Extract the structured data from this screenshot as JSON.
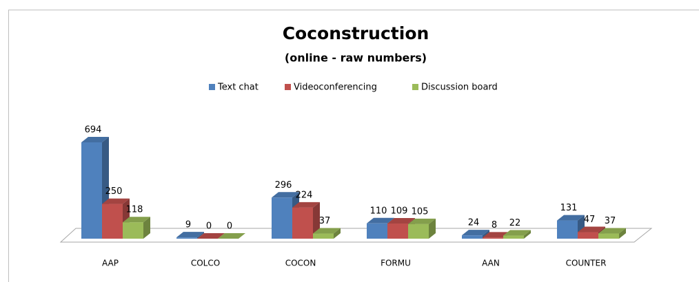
{
  "chart_data": {
    "type": "bar3d",
    "title": "Coconstruction",
    "subtitle": "(online - raw numbers)",
    "categories": [
      "AAP",
      "COLCO",
      "COCON",
      "FORMU",
      "AAN",
      "COUNTER"
    ],
    "series": [
      {
        "name": "Text chat",
        "color": "#4f81bd",
        "values": [
          694,
          9,
          296,
          110,
          24,
          131
        ]
      },
      {
        "name": "Videoconferencing",
        "color": "#c0504d",
        "values": [
          250,
          0,
          224,
          109,
          8,
          47
        ]
      },
      {
        "name": "Discussion board",
        "color": "#9bbb59",
        "values": [
          118,
          0,
          37,
          105,
          22,
          37
        ]
      }
    ],
    "legend": "top"
  }
}
